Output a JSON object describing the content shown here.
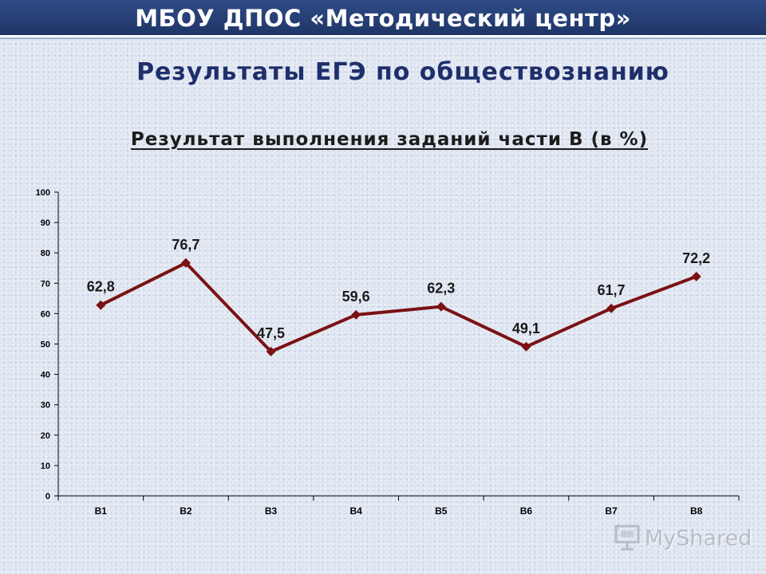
{
  "header": {
    "text": "МБОУ ДПОС «Методический центр»"
  },
  "slide_title": "Результаты  ЕГЭ по обществознанию",
  "chart_data": {
    "type": "line",
    "title": "Результат выполнения заданий части В (в %)",
    "categories": [
      "В1",
      "В2",
      "В3",
      "В4",
      "В5",
      "В6",
      "В7",
      "В8"
    ],
    "series": [
      {
        "values": [
          62.8,
          76.7,
          47.5,
          59.6,
          62.3,
          49.1,
          61.7,
          72.2
        ]
      }
    ],
    "data_labels": [
      "62,8",
      "76,7",
      "47,5",
      "59,6",
      "62,3",
      "49,1",
      "61,7",
      "72,2"
    ],
    "yticks": [
      "0",
      "10",
      "20",
      "30",
      "40",
      "50",
      "60",
      "70",
      "80",
      "90",
      "100"
    ],
    "ylim": [
      0,
      100
    ],
    "xlabel": "",
    "ylabel": "",
    "grid": false,
    "legend": "none",
    "line_color": "#7b1113"
  },
  "watermark": {
    "text": "MyShared"
  }
}
